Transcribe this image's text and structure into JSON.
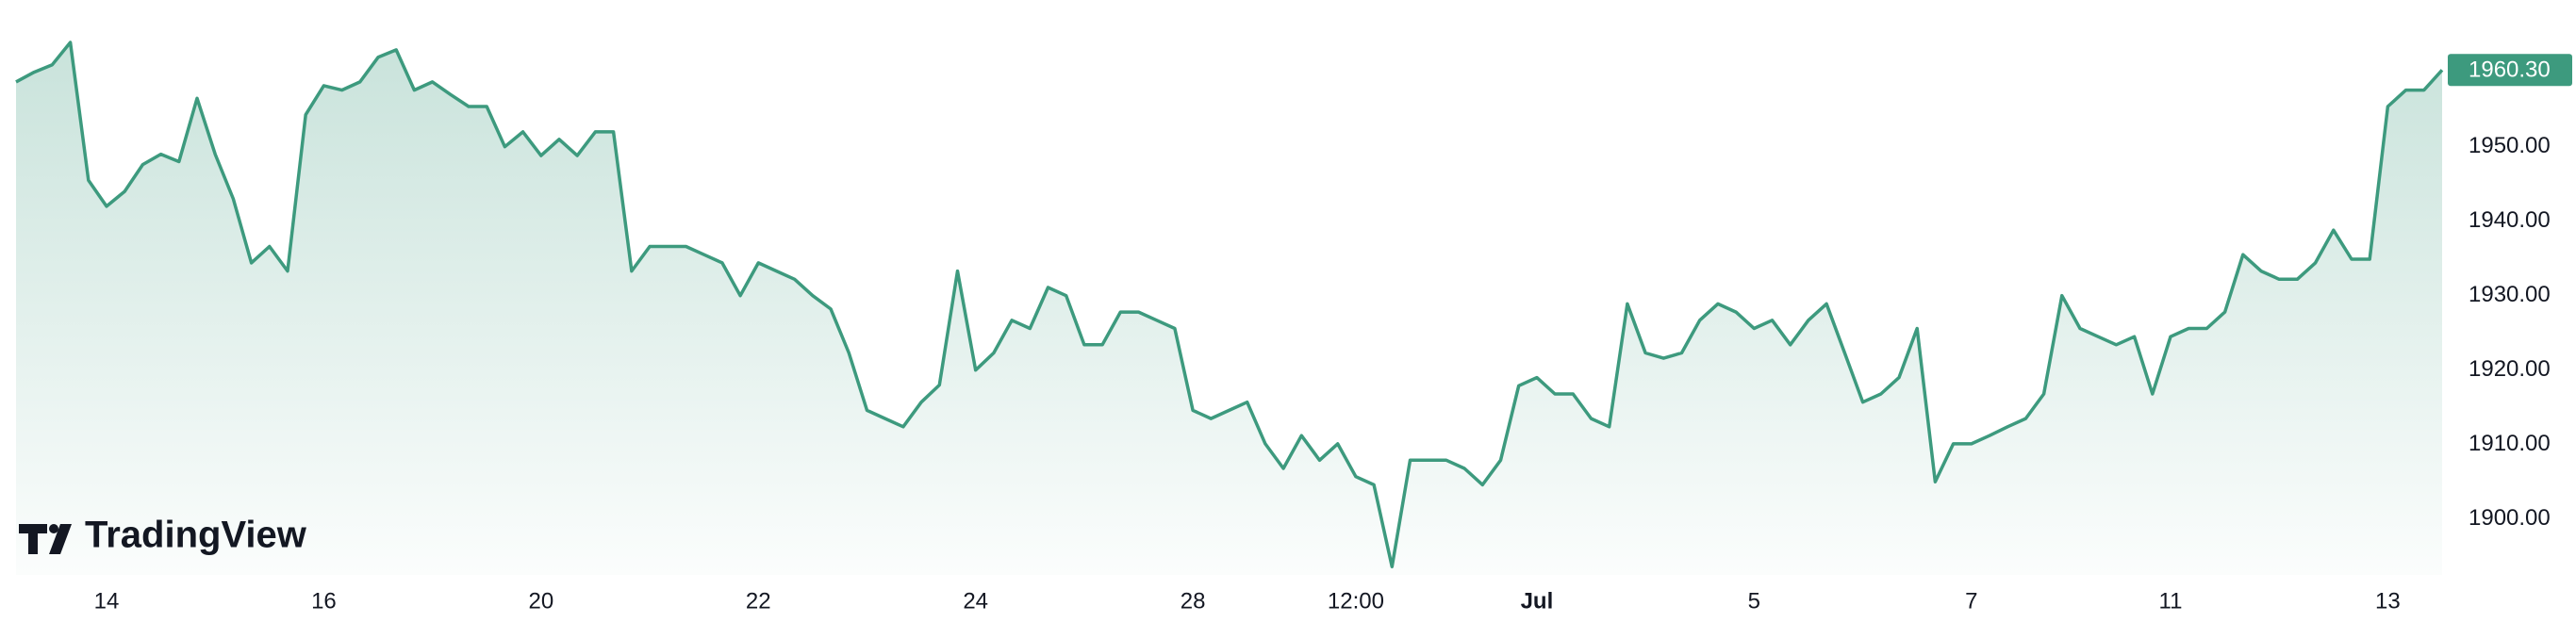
{
  "chart_data": {
    "type": "area",
    "watermark": "TradingView",
    "color": "#3d9a7e",
    "values": [
      1958.7,
      1960,
      1961,
      1964,
      1945.5,
      1942,
      1944,
      1947.6,
      1949,
      1948,
      1956.5,
      1949,
      1943,
      1934.4,
      1936.6,
      1933.3,
      1954.3,
      1958.2,
      1957.6,
      1958.7,
      1962,
      1963,
      1957.6,
      1958.7,
      1957,
      1955.4,
      1955.4,
      1950,
      1952,
      1948.8,
      1951,
      1948.8,
      1952,
      1952,
      1933.3,
      1936.6,
      1936.6,
      1936.6,
      1935.5,
      1934.4,
      1930,
      1934.4,
      1933.3,
      1932.2,
      1930,
      1928.2,
      1922.3,
      1914.6,
      1913.5,
      1912.4,
      1915.7,
      1918,
      1933.3,
      1920,
      1922.3,
      1926.7,
      1925.6,
      1931.1,
      1930,
      1923.4,
      1923.4,
      1927.8,
      1927.8,
      1926.7,
      1925.6,
      1914.6,
      1913.5,
      1914.6,
      1915.7,
      1910.1,
      1906.8,
      1911.2,
      1907.9,
      1910.1,
      1905.7,
      1904.6,
      1893.6,
      1907.9,
      1907.9,
      1907.9,
      1906.8,
      1904.6,
      1907.9,
      1917.9,
      1919,
      1916.8,
      1916.8,
      1913.5,
      1912.4,
      1928.9,
      1922.3,
      1921.6,
      1922.3,
      1926.7,
      1928.9,
      1927.8,
      1925.6,
      1926.7,
      1923.4,
      1926.7,
      1928.9,
      1922.3,
      1915.7,
      1916.8,
      1919,
      1925.6,
      1905,
      1910.1,
      1910.1,
      1911.2,
      1912.4,
      1913.5,
      1916.8,
      1930,
      1925.6,
      1924.5,
      1923.4,
      1924.5,
      1916.8,
      1924.5,
      1925.6,
      1925.6,
      1927.8,
      1935.5,
      1933.3,
      1932.2,
      1932.2,
      1934.4,
      1938.8,
      1934.9,
      1934.9,
      1955.4,
      1957.6,
      1957.6,
      1960.3
    ],
    "categories": [
      null,
      null,
      null,
      null,
      null,
      "14",
      null,
      null,
      null,
      null,
      null,
      null,
      null,
      null,
      null,
      null,
      null,
      "16",
      null,
      null,
      null,
      null,
      null,
      null,
      null,
      null,
      null,
      null,
      null,
      "20",
      null,
      null,
      null,
      null,
      null,
      null,
      null,
      null,
      null,
      null,
      null,
      "22",
      null,
      null,
      null,
      null,
      null,
      null,
      null,
      null,
      null,
      null,
      null,
      "24",
      null,
      null,
      null,
      null,
      null,
      null,
      null,
      null,
      null,
      null,
      null,
      "28",
      null,
      null,
      null,
      null,
      null,
      null,
      null,
      null,
      "12:00",
      null,
      null,
      null,
      null,
      null,
      null,
      null,
      null,
      null,
      "Jul",
      null,
      null,
      null,
      null,
      null,
      null,
      null,
      null,
      null,
      null,
      null,
      "5",
      null,
      null,
      null,
      null,
      null,
      null,
      null,
      null,
      null,
      null,
      null,
      "7",
      null,
      null,
      null,
      null,
      null,
      null,
      null,
      null,
      null,
      null,
      "11",
      null,
      null,
      null,
      null,
      null,
      null,
      null,
      null,
      null,
      null,
      null,
      "13",
      null,
      null,
      null
    ],
    "ylim": [
      1892.5,
      1969.7
    ],
    "yticks": [
      {
        "value": 1900,
        "label": "1900.00"
      },
      {
        "value": 1910,
        "label": "1910.00"
      },
      {
        "value": 1920,
        "label": "1920.00"
      },
      {
        "value": 1930,
        "label": "1930.00"
      },
      {
        "value": 1940,
        "label": "1940.00"
      },
      {
        "value": 1950,
        "label": "1950.00"
      }
    ],
    "last_price": {
      "value": 1960.3,
      "label": "1960.30"
    }
  }
}
